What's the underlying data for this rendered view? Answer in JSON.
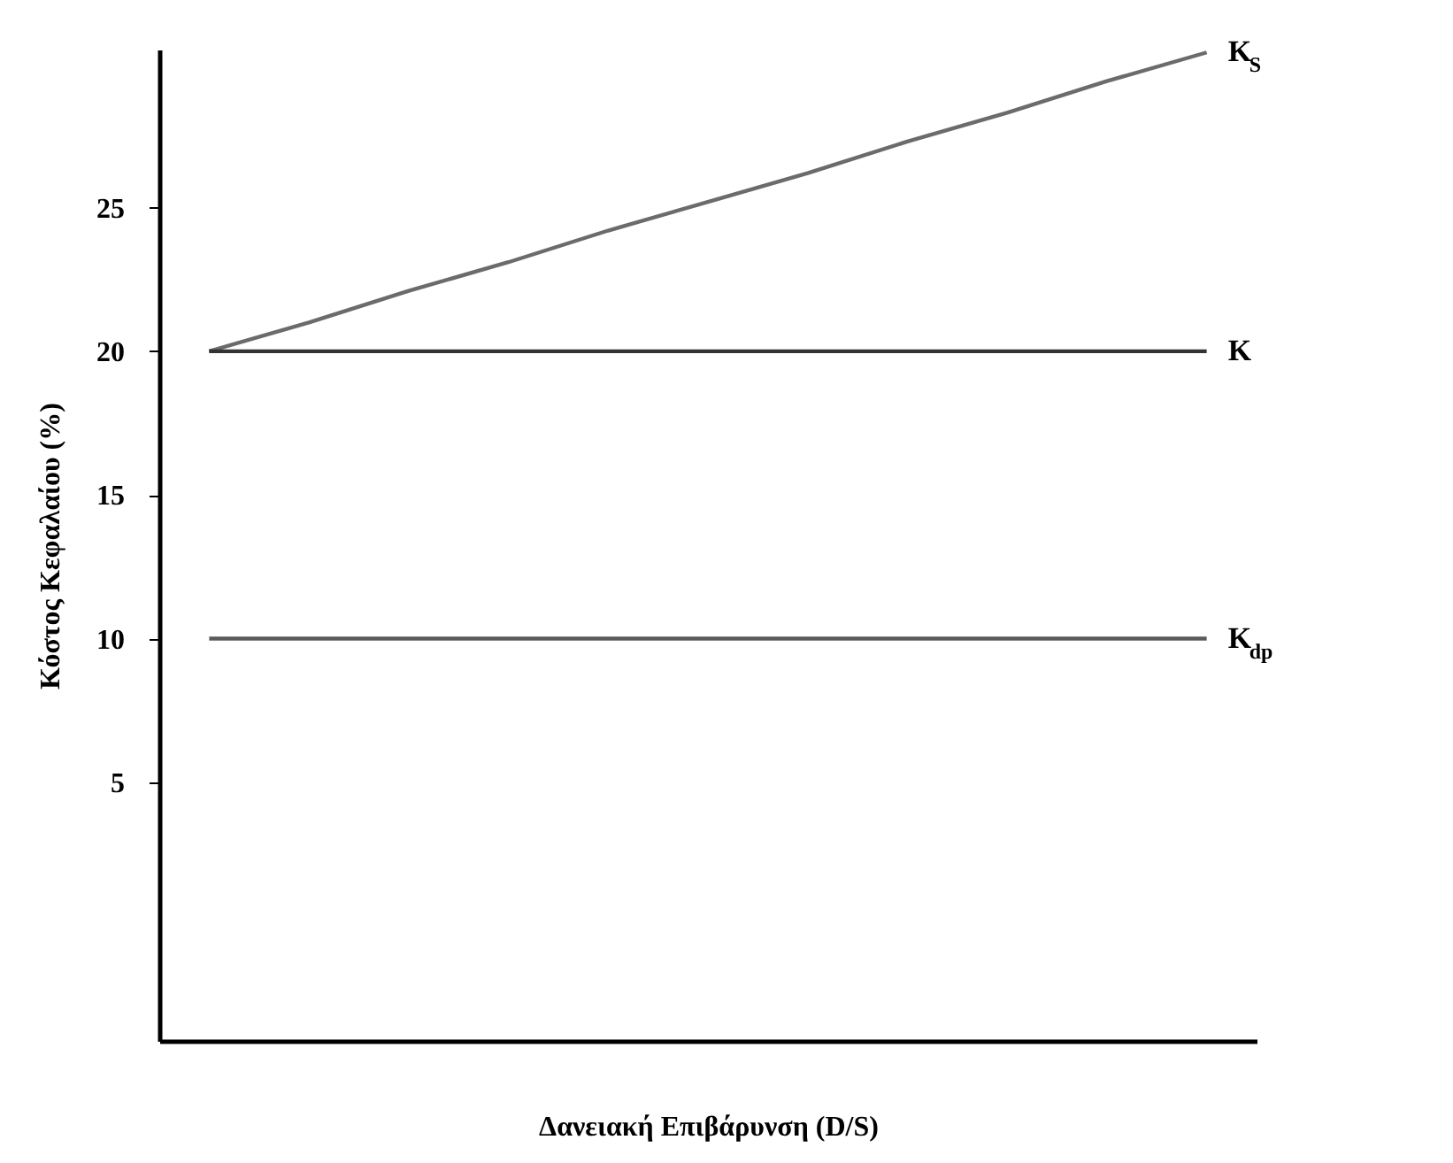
{
  "chart_data": {
    "type": "line",
    "xlabel": "Δανειακή Επιβάρυνση (D/S)",
    "ylabel": "Κόστος Κεφαλαίου (%)",
    "categories": [
      null,
      null,
      null,
      null,
      null,
      null,
      null,
      null,
      null,
      null,
      null
    ],
    "series": [
      {
        "name": "K$_{S}$",
        "color": "#6b6b6b",
        "values": [
          20,
          21,
          22.1,
          23.1,
          24.2,
          25.2,
          26.2,
          27.3,
          28.3,
          29.4,
          30.4
        ]
      },
      {
        "name": "K",
        "color": "#333333",
        "values": [
          20,
          20,
          20,
          20,
          20,
          20,
          20,
          20,
          20,
          20,
          20
        ]
      },
      {
        "name": "K$_{dp}$",
        "color": "#5a5a5a",
        "values": [
          10,
          10,
          10,
          10,
          10,
          10,
          10,
          10,
          10,
          10,
          10
        ]
      }
    ],
    "ylim": [
      -4,
      30.5
    ],
    "yticks": [
      5,
      10,
      15,
      20,
      25
    ],
    "tick_labels": "y",
    "grid": false,
    "legend": false,
    "line_style": "solid"
  }
}
